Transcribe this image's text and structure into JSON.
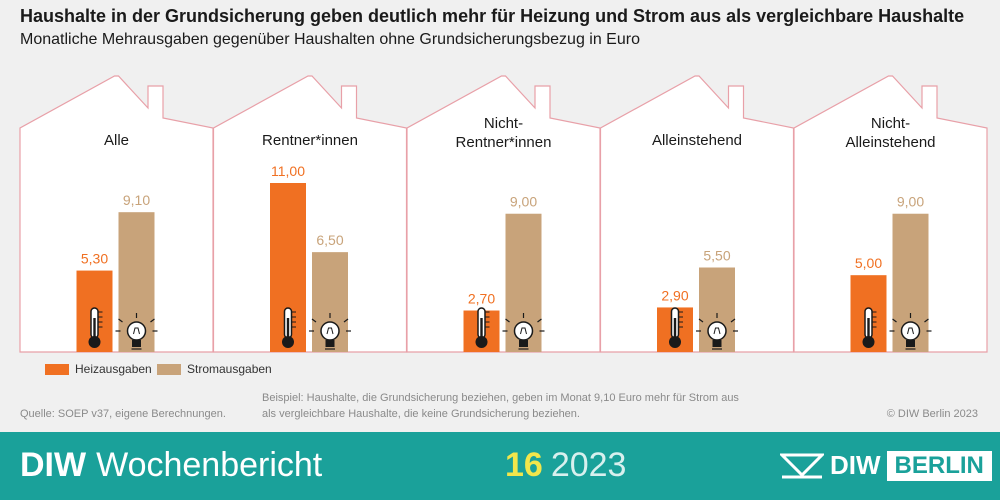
{
  "chart_data": {
    "type": "bar",
    "title": "Haushalte in der Grundsicherung geben deutlich mehr für Heizung und Strom aus als vergleichbare Haushalte",
    "subtitle": "Monatliche Mehrausgaben gegenüber Haushalten ohne Grundsicherungsbezug in Euro",
    "categories": [
      [
        "Alle"
      ],
      [
        "Rentner*innen"
      ],
      [
        "Nicht-",
        "Rentner*innen"
      ],
      [
        "Alleinstehend"
      ],
      [
        "Nicht-",
        "Alleinstehend"
      ]
    ],
    "series": [
      {
        "name": "Heizausgaben",
        "values": [
          5.3,
          11.0,
          2.7,
          2.9,
          5.0
        ],
        "labels": [
          "5,30",
          "11,00",
          "2,70",
          "2,90",
          "5,00"
        ],
        "color": "#f07022",
        "icon": "thermometer-icon"
      },
      {
        "name": "Stromausgaben",
        "values": [
          9.1,
          6.5,
          9.0,
          5.5,
          9.0
        ],
        "labels": [
          "9,10",
          "6,50",
          "9,00",
          "5,50",
          "9,00"
        ],
        "color": "#c8a37a",
        "icon": "lightbulb-icon"
      }
    ],
    "ylim": [
      0,
      11
    ],
    "grid": false,
    "legend": "bottom-left"
  },
  "notes": {
    "source": "Quelle: SOEP v37, eigene Berechnungen.",
    "example_line1": "Beispiel: Haushalte, die Grundsicherung beziehen, geben im Monat 9,10 Euro mehr für Strom aus",
    "example_line2": "als vergleichbare Haushalte, die keine Grundsicherung beziehen.",
    "copyright": "© DIW Berlin 2023"
  },
  "footer": {
    "brand_bold": "DIW",
    "brand_rest": "Wochenbericht",
    "issue_number": "16",
    "issue_year": "2023",
    "logo_diw": "DIW",
    "logo_berlin": "BERLIN"
  },
  "colors": {
    "house_outline": "#e8a0a8",
    "footer_bg": "#1aa19a",
    "value_heiz": "#f07022",
    "value_strom": "#c8a37a"
  }
}
